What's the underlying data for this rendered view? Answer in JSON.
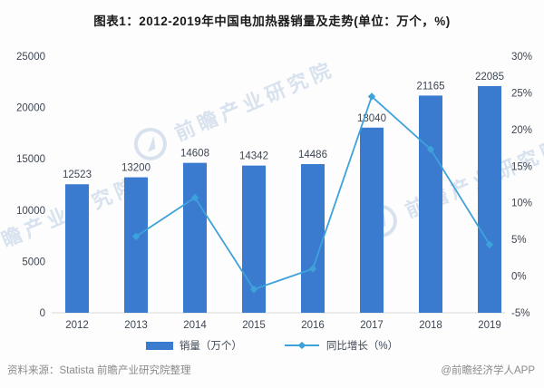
{
  "title": "图表1：2012-2019年中国电加热器销量及走势(单位：万个，%)",
  "colors": {
    "bar": "#3a7bd0",
    "line": "#3ea2da",
    "chart_text": "#3d4655",
    "baseline": "#d9d9d9",
    "footer_text": "#8a8a8a",
    "watermark": "#9db8d8"
  },
  "chart_data": {
    "type": "bar",
    "title": "图表1：2012-2019年中国电加热器销量及走势(单位：万个，%)",
    "categories": [
      "2012",
      "2013",
      "2014",
      "2015",
      "2016",
      "2017",
      "2018",
      "2019"
    ],
    "series": [
      {
        "name": "销量（万个）",
        "type": "bar",
        "axis": "left",
        "values": [
          12523,
          13200,
          14608,
          14342,
          14486,
          18040,
          21165,
          22085
        ],
        "labels": [
          "12523",
          "13200",
          "14608",
          "14342",
          "14486",
          "18040",
          "21165",
          "22085"
        ]
      },
      {
        "name": "同比增长（%）",
        "type": "line",
        "axis": "right",
        "values": [
          null,
          5.4,
          10.7,
          -1.8,
          1.0,
          24.5,
          17.3,
          4.3
        ]
      }
    ],
    "left_axis": {
      "min": 0,
      "max": 25000,
      "step": 5000,
      "ticks": [
        "0",
        "5000",
        "10000",
        "15000",
        "20000",
        "25000"
      ]
    },
    "right_axis": {
      "min": -5,
      "max": 30,
      "step": 5,
      "ticks": [
        "-5%",
        "0%",
        "5%",
        "10%",
        "15%",
        "20%",
        "25%",
        "30%"
      ]
    },
    "grid": false,
    "legend_position": "bottom"
  },
  "legend": {
    "bar_label": "销量（万个）",
    "line_label": "同比增长（%）"
  },
  "footer": {
    "source": "资料来源：Statista 前瞻产业研究院整理",
    "credit": "@前瞻经济学人APP"
  },
  "watermark": {
    "text": "前瞻产业研究院",
    "logo_icon": "forward-swoosh-circle-icon"
  }
}
